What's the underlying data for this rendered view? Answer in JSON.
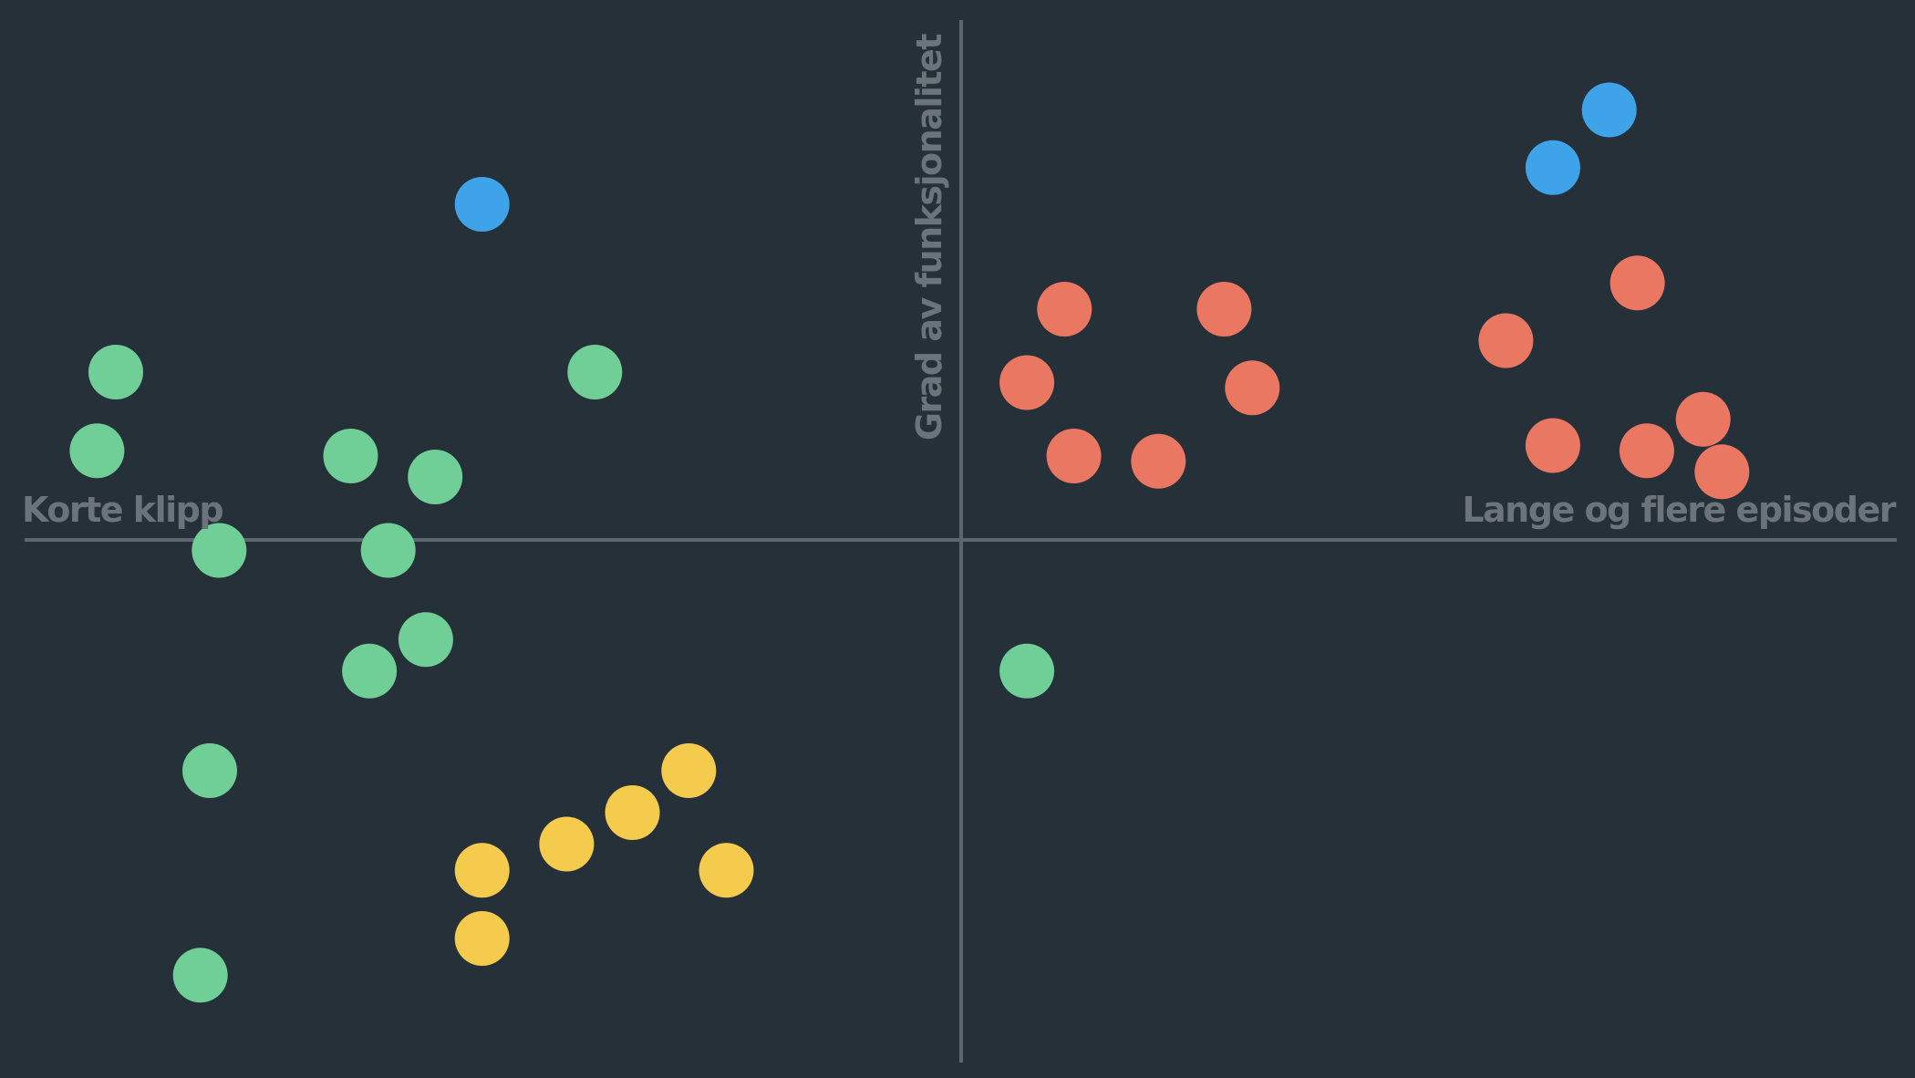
{
  "chart_data": {
    "type": "scatter",
    "title": "",
    "xlabel_negative": "Korte klipp",
    "xlabel_positive": "Lange og flere episoder",
    "ylabel": "Grad av funksjonalitet",
    "xlim": [
      -1,
      1
    ],
    "ylim": [
      -1,
      1
    ],
    "grid": false,
    "legend": "none",
    "colors": {
      "background": "#253039",
      "axis": "#5c666e",
      "axis_text": "#6b747b",
      "green": "#6fcf97",
      "blue": "#3fa3ea",
      "red": "#ea7762",
      "yellow": "#f4cb4c"
    },
    "points": [
      {
        "x": -0.9,
        "y": 0.32,
        "color": "green"
      },
      {
        "x": -0.92,
        "y": 0.17,
        "color": "green"
      },
      {
        "x": -0.65,
        "y": 0.16,
        "color": "green"
      },
      {
        "x": -0.56,
        "y": 0.12,
        "color": "green"
      },
      {
        "x": -0.39,
        "y": 0.32,
        "color": "green"
      },
      {
        "x": -0.79,
        "y": -0.02,
        "color": "green"
      },
      {
        "x": -0.61,
        "y": -0.02,
        "color": "green"
      },
      {
        "x": -0.57,
        "y": -0.19,
        "color": "green"
      },
      {
        "x": -0.63,
        "y": -0.25,
        "color": "green"
      },
      {
        "x": -0.8,
        "y": -0.44,
        "color": "green"
      },
      {
        "x": -0.81,
        "y": -0.83,
        "color": "green"
      },
      {
        "x": 0.07,
        "y": -0.25,
        "color": "green"
      },
      {
        "x": -0.51,
        "y": 0.64,
        "color": "blue"
      },
      {
        "x": 0.69,
        "y": 0.82,
        "color": "blue"
      },
      {
        "x": 0.63,
        "y": 0.71,
        "color": "blue"
      },
      {
        "x": 0.11,
        "y": 0.44,
        "color": "red"
      },
      {
        "x": 0.28,
        "y": 0.44,
        "color": "red"
      },
      {
        "x": 0.07,
        "y": 0.3,
        "color": "red"
      },
      {
        "x": 0.31,
        "y": 0.29,
        "color": "red"
      },
      {
        "x": 0.12,
        "y": 0.16,
        "color": "red"
      },
      {
        "x": 0.21,
        "y": 0.15,
        "color": "red"
      },
      {
        "x": 0.72,
        "y": 0.49,
        "color": "red"
      },
      {
        "x": 0.58,
        "y": 0.38,
        "color": "red"
      },
      {
        "x": 0.79,
        "y": 0.23,
        "color": "red"
      },
      {
        "x": 0.63,
        "y": 0.18,
        "color": "red"
      },
      {
        "x": 0.73,
        "y": 0.17,
        "color": "red"
      },
      {
        "x": 0.81,
        "y": 0.13,
        "color": "red"
      },
      {
        "x": -0.29,
        "y": -0.44,
        "color": "yellow"
      },
      {
        "x": -0.35,
        "y": -0.52,
        "color": "yellow"
      },
      {
        "x": -0.42,
        "y": -0.58,
        "color": "yellow"
      },
      {
        "x": -0.51,
        "y": -0.63,
        "color": "yellow"
      },
      {
        "x": -0.25,
        "y": -0.63,
        "color": "yellow"
      },
      {
        "x": -0.51,
        "y": -0.76,
        "color": "yellow"
      }
    ]
  }
}
